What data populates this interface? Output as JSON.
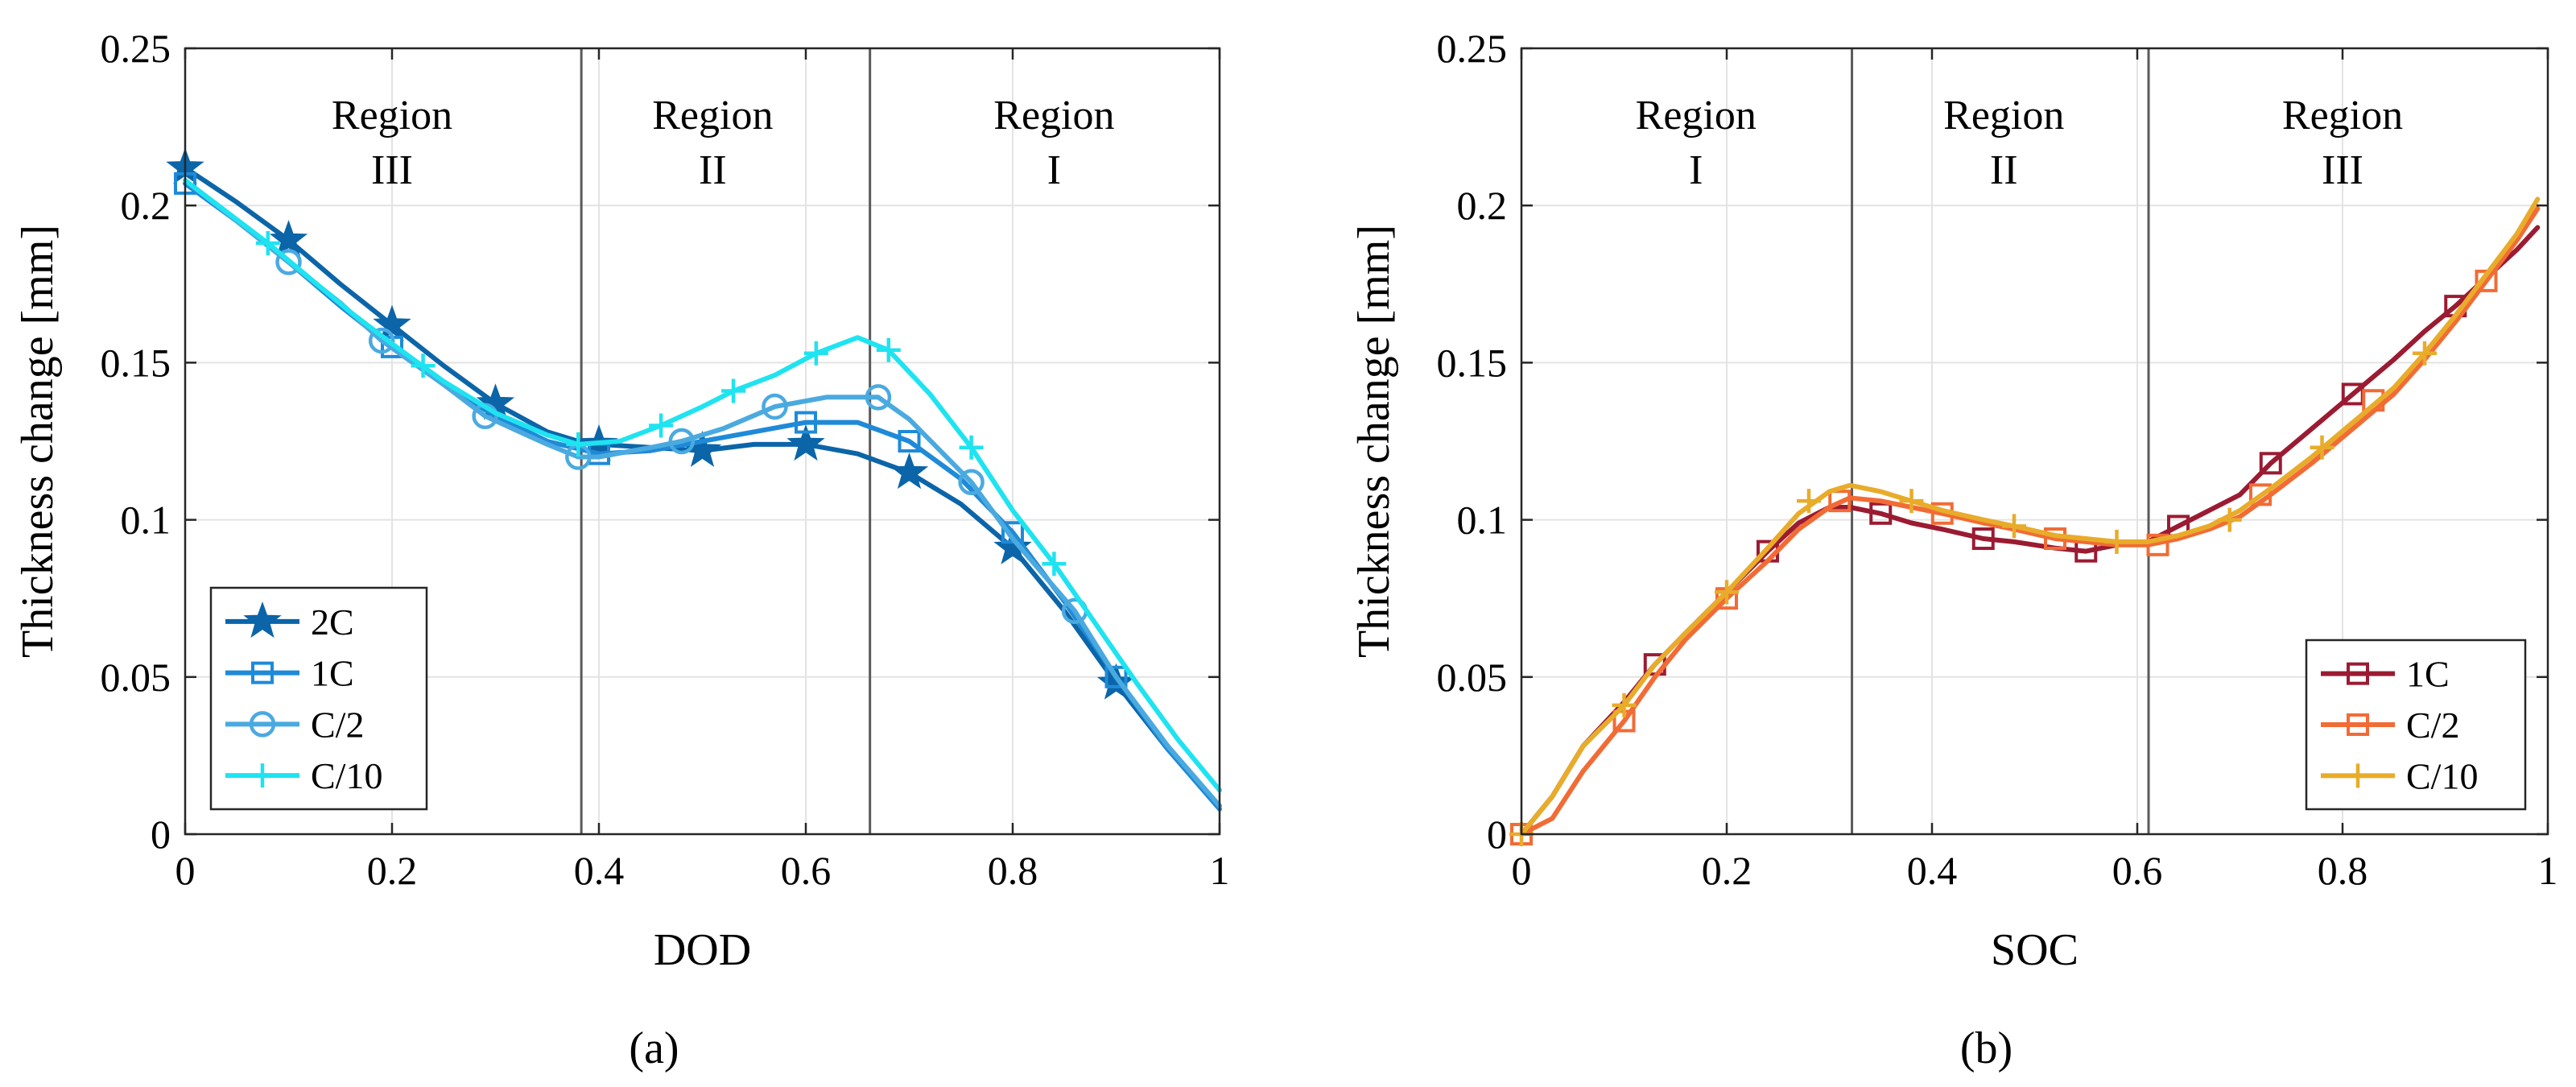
{
  "colors": {
    "2C": "#0b65a8",
    "1C": "#1e8ad8",
    "C/2": "#4aaae0",
    "C/10": "#1fe3f0",
    "b_1C": "#9a1b32",
    "b_C/2": "#f26b35",
    "b_C/10": "#e8ac2a",
    "grid": "#e3e3e3",
    "boundary": "#5a5a5a"
  },
  "chart_data": [
    {
      "type": "line",
      "caption": "(a)",
      "xlabel": "DOD",
      "ylabel": "Thickness change [mm]",
      "xlim": [
        0,
        1
      ],
      "ylim": [
        0,
        0.25
      ],
      "xticks": [
        0,
        0.2,
        0.4,
        0.6,
        0.8,
        1
      ],
      "xtick_labels": [
        "0",
        "0.2",
        "0.4",
        "0.6",
        "0.8",
        "1"
      ],
      "yticks": [
        0,
        0.05,
        0.1,
        0.15,
        0.2,
        0.25
      ],
      "ytick_labels": [
        "0",
        "0.05",
        "0.1",
        "0.15",
        "0.2",
        "0.25"
      ],
      "grid": true,
      "legend_position": "bottom-left",
      "boundaries": [
        0.383,
        0.662
      ],
      "regions": [
        {
          "line1": "Region",
          "line2": "III",
          "x": 0.2
        },
        {
          "line1": "Region",
          "line2": "II",
          "x": 0.51
        },
        {
          "line1": "Region",
          "line2": "I",
          "x": 0.84
        }
      ],
      "series": [
        {
          "name": "2C",
          "color_key": "2C",
          "marker": "star",
          "x": [
            0,
            0.05,
            0.1,
            0.15,
            0.2,
            0.25,
            0.3,
            0.35,
            0.38,
            0.4,
            0.45,
            0.5,
            0.55,
            0.6,
            0.65,
            0.7,
            0.75,
            0.8,
            0.85,
            0.9,
            0.95,
            1.0
          ],
          "y": [
            0.212,
            0.201,
            0.189,
            0.175,
            0.162,
            0.149,
            0.137,
            0.128,
            0.125,
            0.124,
            0.123,
            0.122,
            0.124,
            0.124,
            0.121,
            0.115,
            0.105,
            0.091,
            0.071,
            0.048,
            0.027,
            0.009
          ],
          "markers_x": [
            0,
            0.1,
            0.2,
            0.3,
            0.4,
            0.5,
            0.6,
            0.7,
            0.8,
            0.9
          ],
          "markers_y": [
            0.212,
            0.189,
            0.162,
            0.137,
            0.124,
            0.122,
            0.124,
            0.115,
            0.091,
            0.048
          ]
        },
        {
          "name": "1C",
          "color_key": "1C",
          "marker": "square",
          "x": [
            0,
            0.05,
            0.1,
            0.15,
            0.2,
            0.25,
            0.3,
            0.35,
            0.4,
            0.45,
            0.5,
            0.55,
            0.6,
            0.65,
            0.7,
            0.75,
            0.8,
            0.85,
            0.9,
            0.95,
            1.0
          ],
          "y": [
            0.207,
            0.195,
            0.182,
            0.168,
            0.155,
            0.143,
            0.133,
            0.125,
            0.121,
            0.122,
            0.125,
            0.128,
            0.131,
            0.131,
            0.125,
            0.113,
            0.096,
            0.074,
            0.05,
            0.027,
            0.008
          ],
          "markers_x": [
            0,
            0.2,
            0.4,
            0.6,
            0.7,
            0.8,
            0.9
          ],
          "markers_y": [
            0.207,
            0.155,
            0.121,
            0.131,
            0.125,
            0.096,
            0.05
          ]
        },
        {
          "name": "C/2",
          "color_key": "C/2",
          "marker": "circle",
          "x": [
            0,
            0.05,
            0.1,
            0.15,
            0.19,
            0.25,
            0.29,
            0.35,
            0.38,
            0.4,
            0.45,
            0.48,
            0.52,
            0.57,
            0.62,
            0.67,
            0.7,
            0.76,
            0.8,
            0.86,
            0.9,
            0.95,
            1.0
          ],
          "y": [
            0.208,
            0.195,
            0.182,
            0.169,
            0.157,
            0.143,
            0.133,
            0.124,
            0.12,
            0.12,
            0.123,
            0.125,
            0.129,
            0.136,
            0.139,
            0.139,
            0.132,
            0.112,
            0.094,
            0.071,
            0.05,
            0.028,
            0.009
          ],
          "markers_x": [
            0.1,
            0.19,
            0.29,
            0.38,
            0.48,
            0.57,
            0.67,
            0.76,
            0.86
          ],
          "markers_y": [
            0.182,
            0.157,
            0.133,
            0.12,
            0.125,
            0.136,
            0.139,
            0.112,
            0.071
          ]
        },
        {
          "name": "C/10",
          "color_key": "C/10",
          "marker": "plus",
          "x": [
            0,
            0.04,
            0.08,
            0.12,
            0.16,
            0.2,
            0.25,
            0.3,
            0.35,
            0.38,
            0.42,
            0.46,
            0.5,
            0.53,
            0.57,
            0.61,
            0.65,
            0.68,
            0.72,
            0.76,
            0.8,
            0.84,
            0.88,
            0.92,
            0.96,
            1.0
          ],
          "y": [
            0.208,
            0.198,
            0.188,
            0.177,
            0.166,
            0.156,
            0.144,
            0.134,
            0.127,
            0.124,
            0.125,
            0.13,
            0.136,
            0.141,
            0.146,
            0.153,
            0.158,
            0.154,
            0.14,
            0.123,
            0.103,
            0.086,
            0.067,
            0.048,
            0.03,
            0.014
          ],
          "markers_x": [
            0.08,
            0.23,
            0.38,
            0.46,
            0.53,
            0.61,
            0.68,
            0.76,
            0.84
          ],
          "markers_y": [
            0.188,
            0.149,
            0.124,
            0.13,
            0.141,
            0.153,
            0.154,
            0.123,
            0.086
          ]
        }
      ]
    },
    {
      "type": "line",
      "caption": "(b)",
      "xlabel": "SOC",
      "ylabel": "Thickness change [mm]",
      "xlim": [
        0,
        1
      ],
      "ylim": [
        0,
        0.25
      ],
      "xticks": [
        0,
        0.2,
        0.4,
        0.6,
        0.8,
        1
      ],
      "xtick_labels": [
        "0",
        "0.2",
        "0.4",
        "0.6",
        "0.8",
        "1"
      ],
      "yticks": [
        0,
        0.05,
        0.1,
        0.15,
        0.2,
        0.25
      ],
      "ytick_labels": [
        "0",
        "0.05",
        "0.1",
        "0.15",
        "0.2",
        "0.25"
      ],
      "grid": true,
      "legend_position": "bottom-right",
      "boundaries": [
        0.322,
        0.611
      ],
      "regions": [
        {
          "line1": "Region",
          "line2": "I",
          "x": 0.17
        },
        {
          "line1": "Region",
          "line2": "II",
          "x": 0.47
        },
        {
          "line1": "Region",
          "line2": "III",
          "x": 0.8
        }
      ],
      "series": [
        {
          "name": "1C",
          "color_key": "b_1C",
          "marker": "square",
          "x": [
            0,
            0.03,
            0.06,
            0.1,
            0.13,
            0.16,
            0.2,
            0.24,
            0.27,
            0.3,
            0.32,
            0.35,
            0.38,
            0.41,
            0.45,
            0.48,
            0.52,
            0.55,
            0.58,
            0.61,
            0.64,
            0.67,
            0.7,
            0.73,
            0.77,
            0.81,
            0.85,
            0.88,
            0.91,
            0.94,
            0.97,
            0.99
          ],
          "y": [
            0,
            0.012,
            0.028,
            0.042,
            0.054,
            0.064,
            0.077,
            0.09,
            0.099,
            0.104,
            0.104,
            0.102,
            0.099,
            0.097,
            0.094,
            0.093,
            0.091,
            0.09,
            0.092,
            0.093,
            0.098,
            0.103,
            0.108,
            0.118,
            0.129,
            0.14,
            0.151,
            0.16,
            0.168,
            0.177,
            0.186,
            0.193
          ],
          "markers_x": [
            0,
            0.13,
            0.24,
            0.35,
            0.45,
            0.55,
            0.64,
            0.73,
            0.81,
            0.91
          ],
          "markers_y": [
            0,
            0.054,
            0.09,
            0.102,
            0.094,
            0.09,
            0.098,
            0.118,
            0.14,
            0.168
          ]
        },
        {
          "name": "C/2",
          "color_key": "b_C/2",
          "marker": "square",
          "x": [
            0,
            0.03,
            0.06,
            0.1,
            0.13,
            0.16,
            0.2,
            0.24,
            0.27,
            0.3,
            0.32,
            0.35,
            0.38,
            0.41,
            0.45,
            0.48,
            0.52,
            0.55,
            0.58,
            0.61,
            0.64,
            0.67,
            0.7,
            0.73,
            0.77,
            0.81,
            0.85,
            0.88,
            0.91,
            0.94,
            0.97,
            0.99
          ],
          "y": [
            0,
            0.005,
            0.02,
            0.036,
            0.05,
            0.062,
            0.075,
            0.087,
            0.097,
            0.104,
            0.107,
            0.106,
            0.104,
            0.102,
            0.099,
            0.097,
            0.094,
            0.093,
            0.092,
            0.092,
            0.094,
            0.097,
            0.101,
            0.108,
            0.118,
            0.129,
            0.14,
            0.151,
            0.163,
            0.176,
            0.189,
            0.199
          ],
          "markers_x": [
            0,
            0.1,
            0.2,
            0.31,
            0.41,
            0.52,
            0.62,
            0.72,
            0.83,
            0.94
          ],
          "markers_y": [
            0,
            0.036,
            0.075,
            0.106,
            0.102,
            0.094,
            0.092,
            0.108,
            0.138,
            0.176
          ]
        },
        {
          "name": "C/10",
          "color_key": "b_C/10",
          "marker": "plus",
          "x": [
            0,
            0.03,
            0.06,
            0.1,
            0.13,
            0.16,
            0.2,
            0.24,
            0.27,
            0.3,
            0.32,
            0.35,
            0.38,
            0.41,
            0.45,
            0.48,
            0.52,
            0.55,
            0.58,
            0.61,
            0.64,
            0.67,
            0.7,
            0.73,
            0.77,
            0.81,
            0.85,
            0.88,
            0.91,
            0.94,
            0.97,
            0.99
          ],
          "y": [
            0,
            0.012,
            0.028,
            0.041,
            0.054,
            0.064,
            0.077,
            0.091,
            0.102,
            0.109,
            0.111,
            0.109,
            0.106,
            0.103,
            0.1,
            0.098,
            0.095,
            0.094,
            0.093,
            0.093,
            0.095,
            0.098,
            0.103,
            0.11,
            0.12,
            0.131,
            0.142,
            0.153,
            0.165,
            0.178,
            0.191,
            0.202
          ],
          "markers_x": [
            0,
            0.1,
            0.2,
            0.28,
            0.38,
            0.48,
            0.58,
            0.69,
            0.78,
            0.88
          ],
          "markers_y": [
            0,
            0.041,
            0.077,
            0.106,
            0.106,
            0.098,
            0.093,
            0.1,
            0.123,
            0.153
          ]
        }
      ]
    }
  ]
}
